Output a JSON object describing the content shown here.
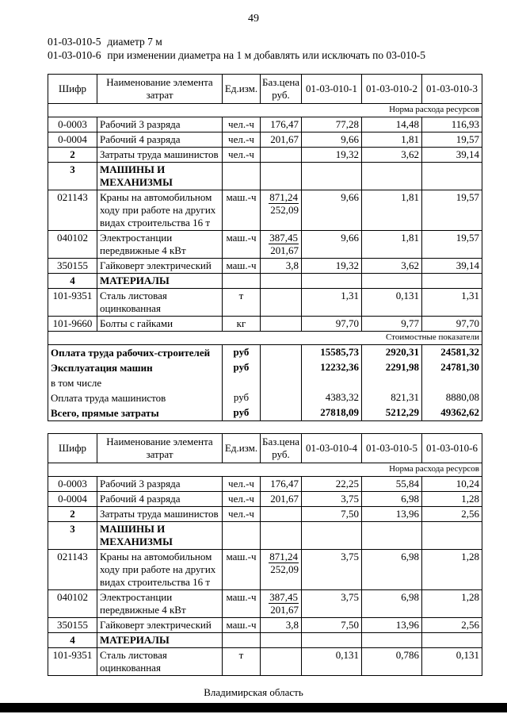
{
  "page": {
    "number": "49",
    "footer": "Владимирская область"
  },
  "header_lines": [
    {
      "code": "01-03-010-5",
      "text": "диаметр 7 м"
    },
    {
      "code": "01-03-010-6",
      "text": "при изменении диаметра на 1 м добавлять или исключать по 03-010-5"
    }
  ],
  "col_headers_common": [
    "Шифр",
    "Наименование элемента затрат",
    "Ед.изм.",
    "Баз.цена руб."
  ],
  "tables": [
    {
      "columns": [
        "01-03-010-1",
        "01-03-010-2",
        "01-03-010-3"
      ],
      "rows": [
        {
          "type": "note",
          "text": "Норма расхода ресурсов"
        },
        {
          "type": "item",
          "code": "0-0003",
          "name": "Рабочий 3 разряда",
          "unit": "чел.-ч",
          "price": [
            "176,47"
          ],
          "values": [
            "77,28",
            "14,48",
            "116,93"
          ]
        },
        {
          "type": "item",
          "code": "0-0004",
          "name": "Рабочий 4 разряда",
          "unit": "чел.-ч",
          "price": [
            "201,67"
          ],
          "values": [
            "9,66",
            "1,81",
            "19,57"
          ]
        },
        {
          "type": "item",
          "code": "2",
          "code_bold": true,
          "name": "Затраты труда машинистов",
          "unit": "чел.-ч",
          "price": [],
          "values": [
            "19,32",
            "3,62",
            "39,14"
          ]
        },
        {
          "type": "section",
          "code": "3",
          "name": "МАШИНЫ И МЕХАНИЗМЫ"
        },
        {
          "type": "item",
          "code": "021143",
          "name": "Краны на автомобильном ходу при работе на других видах строительства 16 т",
          "unit": "маш.-ч",
          "price": [
            "871,24",
            "252,09"
          ],
          "fraction": true,
          "values": [
            "9,66",
            "1,81",
            "19,57"
          ]
        },
        {
          "type": "item",
          "code": "040102",
          "name": "Электростанции передвижные 4 кВт",
          "unit": "маш.-ч",
          "price": [
            "387,45",
            "201,67"
          ],
          "fraction": true,
          "values": [
            "9,66",
            "1,81",
            "19,57"
          ]
        },
        {
          "type": "item",
          "code": "350155",
          "name": "Гайковерт электрический",
          "unit": "маш.-ч",
          "price": [
            "3,8"
          ],
          "values": [
            "19,32",
            "3,62",
            "39,14"
          ]
        },
        {
          "type": "section",
          "code": "4",
          "name": "МАТЕРИАЛЫ"
        },
        {
          "type": "item",
          "code": "101-9351",
          "name": "Сталь листовая оцинкованная",
          "unit": "т",
          "price": [],
          "values": [
            "1,31",
            "0,131",
            "1,31"
          ]
        },
        {
          "type": "item",
          "code": "101-9660",
          "name": "Болты с гайками",
          "unit": "кг",
          "price": [],
          "values": [
            "97,70",
            "9,77",
            "97,70"
          ]
        },
        {
          "type": "note",
          "text": "Стоимостные показатели"
        },
        {
          "type": "cost",
          "name": "Оплата труда рабочих-строителей",
          "unit": "руб",
          "bold": true,
          "values": [
            "15585,73",
            "2920,31",
            "24581,32"
          ]
        },
        {
          "type": "cost",
          "name": "Эксплуатация машин",
          "unit": "руб",
          "bold": true,
          "values": [
            "12232,36",
            "2291,98",
            "24781,30"
          ]
        },
        {
          "type": "cost",
          "name": "в том числе",
          "unit": "",
          "bold": false,
          "values": [
            "",
            "",
            ""
          ]
        },
        {
          "type": "cost",
          "name": "Оплата труда машинистов",
          "unit": "руб",
          "bold": false,
          "values": [
            "4383,32",
            "821,31",
            "8880,08"
          ]
        },
        {
          "type": "cost",
          "name": "Всего, прямые затраты",
          "unit": "руб",
          "bold": true,
          "values": [
            "27818,09",
            "5212,29",
            "49362,62"
          ]
        }
      ]
    },
    {
      "columns": [
        "01-03-010-4",
        "01-03-010-5",
        "01-03-010-6"
      ],
      "rows": [
        {
          "type": "note",
          "text": "Норма расхода ресурсов"
        },
        {
          "type": "item",
          "code": "0-0003",
          "name": "Рабочий 3 разряда",
          "unit": "чел.-ч",
          "price": [
            "176,47"
          ],
          "values": [
            "22,25",
            "55,84",
            "10,24"
          ]
        },
        {
          "type": "item",
          "code": "0-0004",
          "name": "Рабочий 4 разряда",
          "unit": "чел.-ч",
          "price": [
            "201,67"
          ],
          "values": [
            "3,75",
            "6,98",
            "1,28"
          ]
        },
        {
          "type": "item",
          "code": "2",
          "code_bold": true,
          "name": "Затраты труда машинистов",
          "unit": "чел.-ч",
          "price": [],
          "values": [
            "7,50",
            "13,96",
            "2,56"
          ]
        },
        {
          "type": "section",
          "code": "3",
          "name": "МАШИНЫ И МЕХАНИЗМЫ"
        },
        {
          "type": "item",
          "code": "021143",
          "name": "Краны на автомобильном ходу при работе на других видах строительства 16 т",
          "unit": "маш.-ч",
          "price": [
            "871,24",
            "252,09"
          ],
          "fraction": true,
          "values": [
            "3,75",
            "6,98",
            "1,28"
          ]
        },
        {
          "type": "item",
          "code": "040102",
          "name": "Электростанции передвижные 4 кВт",
          "unit": "маш.-ч",
          "price": [
            "387,45",
            "201,67"
          ],
          "fraction": true,
          "values": [
            "3,75",
            "6,98",
            "1,28"
          ]
        },
        {
          "type": "item",
          "code": "350155",
          "name": "Гайковерт электрический",
          "unit": "маш.-ч",
          "price": [
            "3,8"
          ],
          "values": [
            "7,50",
            "13,96",
            "2,56"
          ]
        },
        {
          "type": "section",
          "code": "4",
          "name": "МАТЕРИАЛЫ"
        },
        {
          "type": "item",
          "code": "101-9351",
          "name": "Сталь листовая оцинкованная",
          "unit": "т",
          "price": [],
          "values": [
            "0,131",
            "0,786",
            "0,131"
          ]
        }
      ]
    }
  ]
}
